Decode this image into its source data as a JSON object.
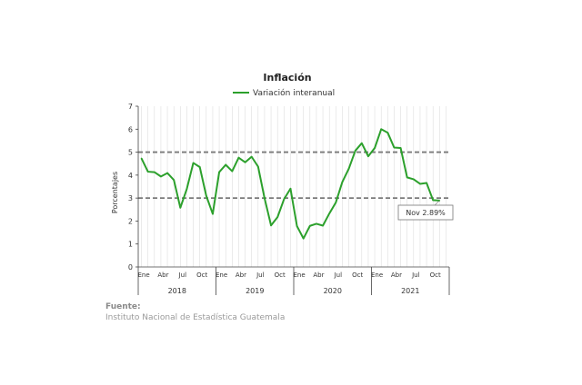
{
  "chart_data": {
    "type": "line",
    "title": "Inflación",
    "ylabel": "Porcentajes",
    "xlabel": "",
    "ylim": [
      0,
      7
    ],
    "yticks": [
      0,
      1,
      2,
      3,
      4,
      5,
      6,
      7
    ],
    "grid": true,
    "legend": "top-center",
    "month_labels": [
      "Ene",
      "Abr",
      "Jul",
      "Oct"
    ],
    "years": [
      "2018",
      "2019",
      "2020",
      "2021"
    ],
    "series": [
      {
        "name": "Variación interanual",
        "color": "#2ca02c",
        "x": [
          "2018-01",
          "2018-02",
          "2018-03",
          "2018-04",
          "2018-05",
          "2018-06",
          "2018-07",
          "2018-08",
          "2018-09",
          "2018-10",
          "2018-11",
          "2018-12",
          "2019-01",
          "2019-02",
          "2019-03",
          "2019-04",
          "2019-05",
          "2019-06",
          "2019-07",
          "2019-08",
          "2019-09",
          "2019-10",
          "2019-11",
          "2019-12",
          "2020-01",
          "2020-02",
          "2020-03",
          "2020-04",
          "2020-05",
          "2020-06",
          "2020-07",
          "2020-08",
          "2020-09",
          "2020-10",
          "2020-11",
          "2020-12",
          "2021-01",
          "2021-02",
          "2021-03",
          "2021-04",
          "2021-05",
          "2021-06",
          "2021-07",
          "2021-08",
          "2021-09",
          "2021-10",
          "2021-11"
        ],
        "values": [
          4.73,
          4.15,
          4.13,
          3.94,
          4.09,
          3.79,
          2.58,
          3.4,
          4.53,
          4.35,
          3.1,
          2.31,
          4.13,
          4.45,
          4.17,
          4.76,
          4.56,
          4.8,
          4.37,
          2.99,
          1.81,
          2.17,
          2.95,
          3.41,
          1.78,
          1.24,
          1.79,
          1.88,
          1.8,
          2.33,
          2.81,
          3.7,
          4.28,
          5.06,
          5.39,
          4.82,
          5.18,
          6.0,
          5.85,
          5.2,
          5.18,
          3.9,
          3.82,
          3.62,
          3.66,
          2.91,
          2.89
        ]
      }
    ],
    "reference_lines": [
      {
        "y": 5,
        "color": "#7a7a7a",
        "style": "dashed"
      },
      {
        "y": 3,
        "color": "#7a7a7a",
        "style": "dashed"
      }
    ],
    "annotation": {
      "text": "Nov 2.89%",
      "x": "2021-11",
      "y": 2.89
    }
  },
  "source": {
    "label": "Fuente:",
    "text": "Instituto Nacional de Estadística Guatemala"
  }
}
